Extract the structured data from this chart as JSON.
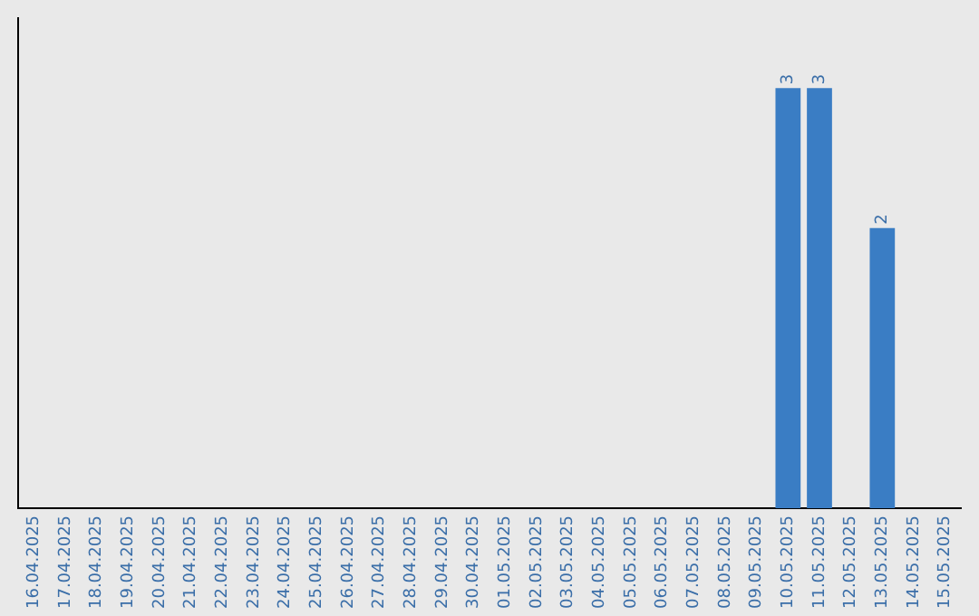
{
  "chart_data": {
    "type": "bar",
    "categories": [
      "16.04.2025",
      "17.04.2025",
      "18.04.2025",
      "19.04.2025",
      "20.04.2025",
      "21.04.2025",
      "22.04.2025",
      "23.04.2025",
      "24.04.2025",
      "25.04.2025",
      "26.04.2025",
      "27.04.2025",
      "28.04.2025",
      "29.04.2025",
      "30.04.2025",
      "01.05.2025",
      "02.05.2025",
      "03.05.2025",
      "04.05.2025",
      "05.05.2025",
      "06.05.2025",
      "07.05.2025",
      "08.05.2025",
      "09.05.2025",
      "10.05.2025",
      "11.05.2025",
      "12.05.2025",
      "13.05.2025",
      "14.05.2025",
      "15.05.2025"
    ],
    "values": [
      null,
      null,
      null,
      null,
      null,
      null,
      null,
      null,
      null,
      null,
      null,
      null,
      null,
      null,
      null,
      null,
      null,
      null,
      null,
      null,
      null,
      null,
      null,
      null,
      3,
      3,
      null,
      2,
      null,
      null
    ],
    "value_labels": [
      null,
      null,
      null,
      null,
      null,
      null,
      null,
      null,
      null,
      null,
      null,
      null,
      null,
      null,
      null,
      null,
      null,
      null,
      null,
      null,
      null,
      null,
      null,
      null,
      "3",
      "3",
      null,
      "2",
      null,
      null
    ],
    "color": "#3a7dc4",
    "tick_labels": "x",
    "grid": false,
    "legend": false
  }
}
